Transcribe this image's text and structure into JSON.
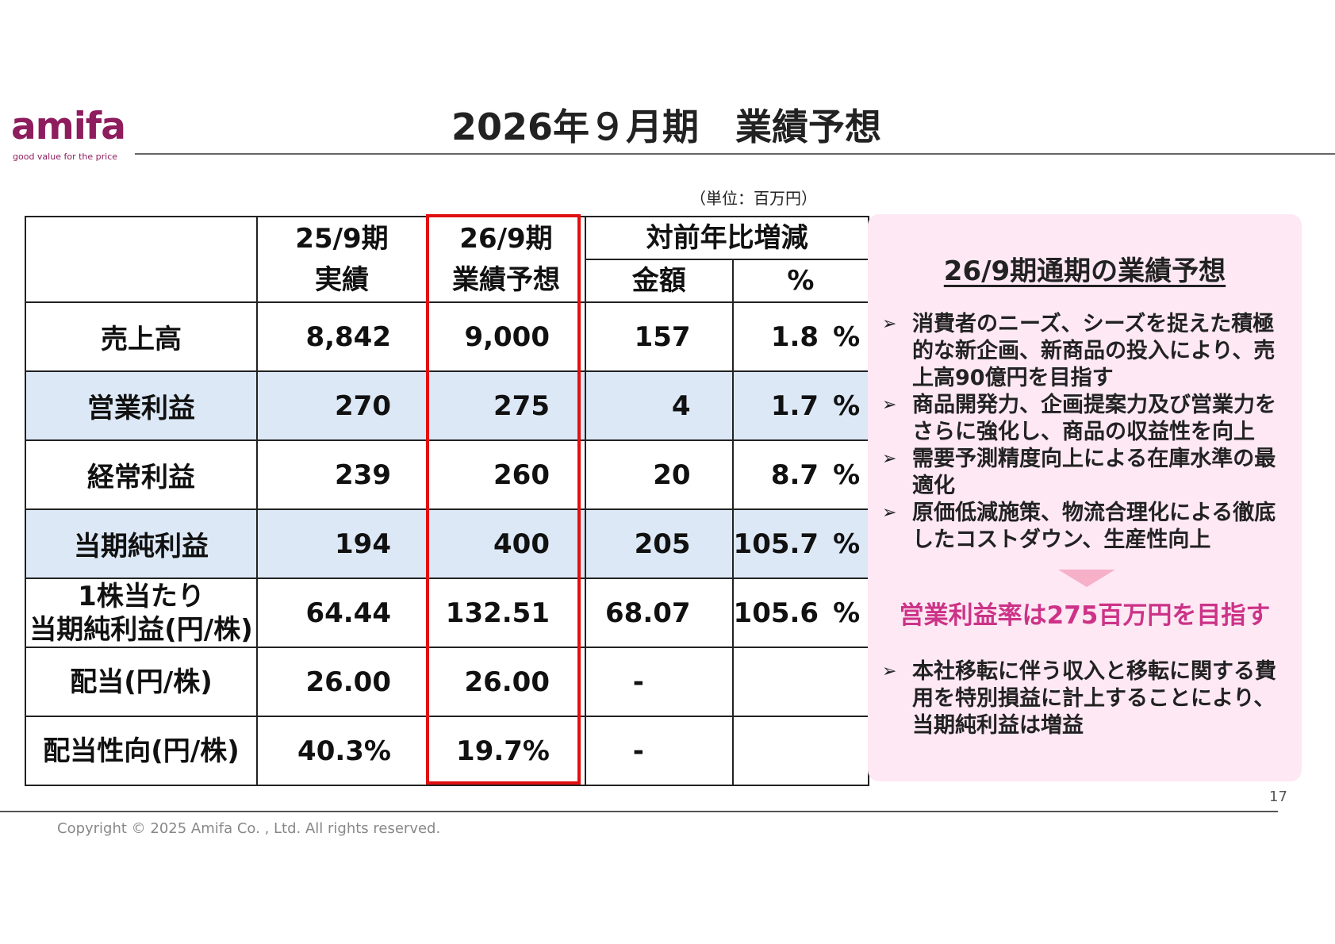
{
  "logo": {
    "name": "amifa",
    "tagline": "good value for the price",
    "color": "#8e1d5e"
  },
  "title": "2026年９月期　業績予想",
  "unit_note": "（単位：百万円）",
  "table": {
    "header": {
      "col1_line1": "25/9期",
      "col1_line2": "実績",
      "col2_line1": "26/9期",
      "col2_line2": "業績予想",
      "col3_group": "対前年比増減",
      "col3_amount": "金額",
      "col3_percent": "%"
    },
    "rows": [
      {
        "label": "売上高",
        "actual": "8,842",
        "forecast": "9,000",
        "amount": "157",
        "percent": "1.8",
        "pct_sign": "%"
      },
      {
        "label": "営業利益",
        "actual": "270",
        "forecast": "275",
        "amount": "4",
        "percent": "1.7",
        "pct_sign": "%"
      },
      {
        "label": "経常利益",
        "actual": "239",
        "forecast": "260",
        "amount": "20",
        "percent": "8.7",
        "pct_sign": "%"
      },
      {
        "label": "当期純利益",
        "actual": "194",
        "forecast": "400",
        "amount": "205",
        "percent": "105.7",
        "pct_sign": "%"
      },
      {
        "label_line1": "1株当たり",
        "label_line2": "当期純利益(円/株)",
        "actual": "64.44",
        "forecast": "132.51",
        "amount": "68.07",
        "percent": "105.6",
        "pct_sign": "%"
      },
      {
        "label": "配当(円/株)",
        "actual": "26.00",
        "forecast": "26.00",
        "amount": "-",
        "percent": ""
      },
      {
        "label": "配当性向(円/株)",
        "actual": "40.3%",
        "forecast": "19.7%",
        "amount": "-",
        "percent": ""
      }
    ],
    "highlight_color": "#dce8f6",
    "forecast_box_color": "#e01010"
  },
  "panel": {
    "title": "26/9期通期の業績予想",
    "bullets": [
      "消費者のニーズ、シーズを捉えた積極的な新企画、新商品の投入により、売上高90億円を目指す",
      "商品開発力、企画提案力及び営業力をさらに強化し、商品の収益性を向上",
      "需要予測精度向上による在庫水準の最適化",
      "原価低減施策、物流合理化による徹底したコストダウン、生産性向上"
    ],
    "target": "営業利益率は275百万円を目指す",
    "bullets2": [
      "本社移転に伴う収入と移転に関する費用を特別損益に計上することにより、当期純利益は増益"
    ],
    "bg_color": "#fde8f3",
    "target_color": "#cc3388"
  },
  "page_number": "17",
  "copyright": "Copyright © 2025 Amifa Co. , Ltd. All rights reserved."
}
